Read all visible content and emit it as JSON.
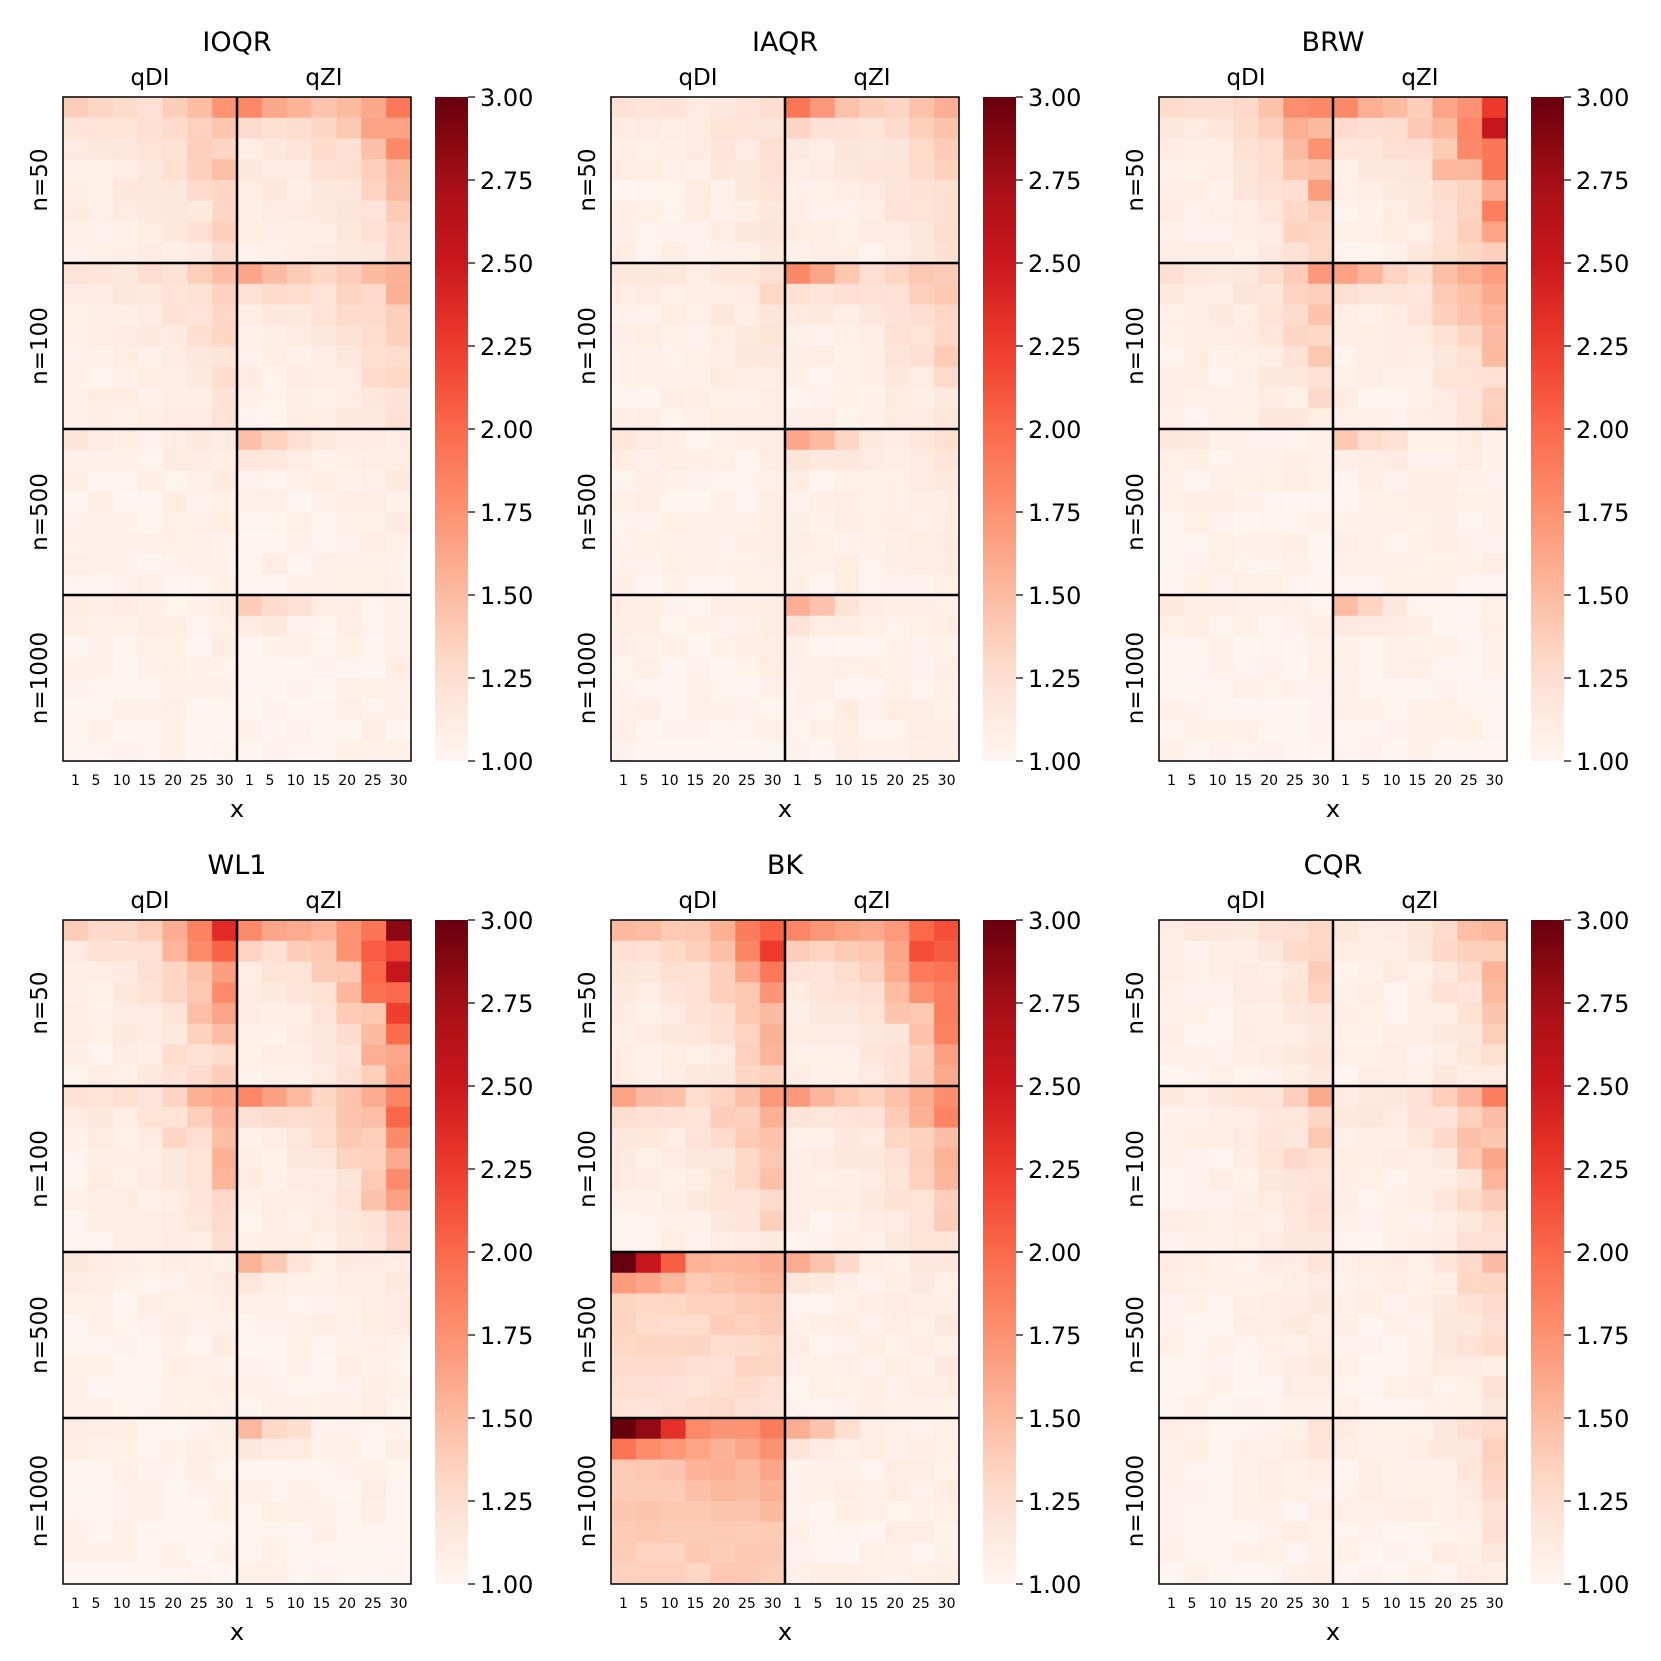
{
  "chart_data": {
    "type": "heatmap",
    "colormap": "Reds",
    "color_range": [
      1.0,
      3.0
    ],
    "colorbar_ticks": [
      "1.00",
      "1.25",
      "1.50",
      "1.75",
      "2.00",
      "2.25",
      "2.50",
      "2.75",
      "3.00"
    ],
    "column_groups": [
      "qDI",
      "qZI"
    ],
    "row_groups": [
      "n=50",
      "n=100",
      "n=500",
      "n=1000"
    ],
    "x_ticks": [
      "1",
      "5",
      "10",
      "15",
      "20",
      "25",
      "30"
    ],
    "xlabel": "x",
    "cells_per_block": {
      "rows": 8,
      "cols": 7
    },
    "panels": [
      {
        "title": "IOQR",
        "blocks": [
          [
            {
              "base": 1.08,
              "top": 0.25,
              "right": 0.35,
              "bottom": 0.2
            },
            {
              "base": 1.08,
              "top": 0.55,
              "right": 0.45,
              "bottom": 0.35
            }
          ],
          [
            {
              "base": 1.06,
              "top": 0.1,
              "right": 0.25,
              "bottom": 0.15
            },
            {
              "base": 1.06,
              "top": 0.5,
              "right": 0.3,
              "bottom": 0.25
            }
          ],
          [
            {
              "base": 1.03,
              "top": 0.12,
              "right": 0.05,
              "bottom": 0.05
            },
            {
              "base": 1.04,
              "top": 0.4,
              "right": 0.05,
              "bottom": 0.05
            }
          ],
          [
            {
              "base": 1.02,
              "top": 0.12,
              "right": 0.02,
              "bottom": 0.02
            },
            {
              "base": 1.03,
              "top": 0.4,
              "right": 0.02,
              "bottom": 0.02
            }
          ]
        ]
      },
      {
        "title": "IAQR",
        "blocks": [
          [
            {
              "base": 1.06,
              "top": 0.15,
              "right": 0.15,
              "bottom": 0.08
            },
            {
              "base": 1.06,
              "top": 0.75,
              "right": 0.3,
              "bottom": 0.25
            }
          ],
          [
            {
              "base": 1.05,
              "top": 0.1,
              "right": 0.12,
              "bottom": 0.08
            },
            {
              "base": 1.05,
              "top": 0.7,
              "right": 0.3,
              "bottom": 0.2
            }
          ],
          [
            {
              "base": 1.03,
              "top": 0.12,
              "right": 0.05,
              "bottom": 0.03
            },
            {
              "base": 1.05,
              "top": 0.55,
              "right": 0.08,
              "bottom": 0.05
            }
          ],
          [
            {
              "base": 1.03,
              "top": 0.1,
              "right": 0.03,
              "bottom": 0.02
            },
            {
              "base": 1.05,
              "top": 0.5,
              "right": 0.03,
              "bottom": 0.02
            }
          ]
        ]
      },
      {
        "title": "BRW",
        "blocks": [
          [
            {
              "base": 1.06,
              "top": 0.12,
              "right": 0.6,
              "bottom": 0.25
            },
            {
              "base": 1.06,
              "top": 0.55,
              "right": 1.0,
              "bottom": 0.35
            }
          ],
          [
            {
              "base": 1.05,
              "top": 0.1,
              "right": 0.35,
              "bottom": 0.15
            },
            {
              "base": 1.05,
              "top": 0.5,
              "right": 0.55,
              "bottom": 0.2
            }
          ],
          [
            {
              "base": 1.03,
              "top": 0.12,
              "right": 0.03,
              "bottom": 0.02
            },
            {
              "base": 1.03,
              "top": 0.4,
              "right": 0.03,
              "bottom": 0.02
            }
          ],
          [
            {
              "base": 1.02,
              "top": 0.12,
              "right": 0.02,
              "bottom": 0.02
            },
            {
              "base": 1.03,
              "top": 0.4,
              "right": 0.02,
              "bottom": 0.02
            }
          ]
        ]
      },
      {
        "title": "WL1",
        "blocks": [
          [
            {
              "base": 1.06,
              "top": 0.15,
              "right": 0.75,
              "bottom": 0.3
            },
            {
              "base": 1.06,
              "top": 0.55,
              "right": 1.2,
              "bottom": 0.4
            }
          ],
          [
            {
              "base": 1.05,
              "top": 0.15,
              "right": 0.45,
              "bottom": 0.15
            },
            {
              "base": 1.05,
              "top": 0.65,
              "right": 0.75,
              "bottom": 0.25
            }
          ],
          [
            {
              "base": 1.03,
              "top": 0.15,
              "right": 0.05,
              "bottom": 0.05
            },
            {
              "base": 1.03,
              "top": 0.45,
              "right": 0.05,
              "bottom": 0.05
            }
          ],
          [
            {
              "base": 1.02,
              "top": 0.12,
              "right": 0.02,
              "bottom": 0.02
            },
            {
              "base": 1.03,
              "top": 0.45,
              "right": 0.02,
              "bottom": 0.02
            }
          ]
        ]
      },
      {
        "title": "BK",
        "blocks": [
          [
            {
              "base": 1.07,
              "top": 0.25,
              "right": 0.65,
              "bottom": 0.4
            },
            {
              "base": 1.07,
              "top": 0.55,
              "right": 1.0,
              "bottom": 0.5
            }
          ],
          [
            {
              "base": 1.07,
              "top": 0.5,
              "right": 0.35,
              "bottom": 0.25
            },
            {
              "base": 1.06,
              "top": 0.6,
              "right": 0.55,
              "bottom": 0.2
            }
          ],
          [
            {
              "base": 1.25,
              "top": 1.7,
              "right": 0.05,
              "bottom": 0.3
            },
            {
              "base": 1.05,
              "top": 0.5,
              "right": 0.05,
              "bottom": 0.05
            }
          ],
          [
            {
              "base": 1.35,
              "top": 1.9,
              "right": 0.1,
              "bottom": 0.4
            },
            {
              "base": 1.04,
              "top": 0.5,
              "right": 0.03,
              "bottom": 0.03
            }
          ]
        ]
      },
      {
        "title": "CQR",
        "blocks": [
          [
            {
              "base": 1.04,
              "top": 0.05,
              "right": 0.25,
              "bottom": 0.1
            },
            {
              "base": 1.04,
              "top": 0.05,
              "right": 0.45,
              "bottom": 0.1
            }
          ],
          [
            {
              "base": 1.04,
              "top": 0.05,
              "right": 0.3,
              "bottom": 0.1
            },
            {
              "base": 1.04,
              "top": 0.05,
              "right": 0.5,
              "bottom": 0.15
            }
          ],
          [
            {
              "base": 1.02,
              "top": 0.05,
              "right": 0.12,
              "bottom": 0.05
            },
            {
              "base": 1.03,
              "top": 0.05,
              "right": 0.25,
              "bottom": 0.08
            }
          ],
          [
            {
              "base": 1.02,
              "top": 0.05,
              "right": 0.1,
              "bottom": 0.03
            },
            {
              "base": 1.03,
              "top": 0.05,
              "right": 0.25,
              "bottom": 0.05
            }
          ]
        ]
      }
    ]
  }
}
